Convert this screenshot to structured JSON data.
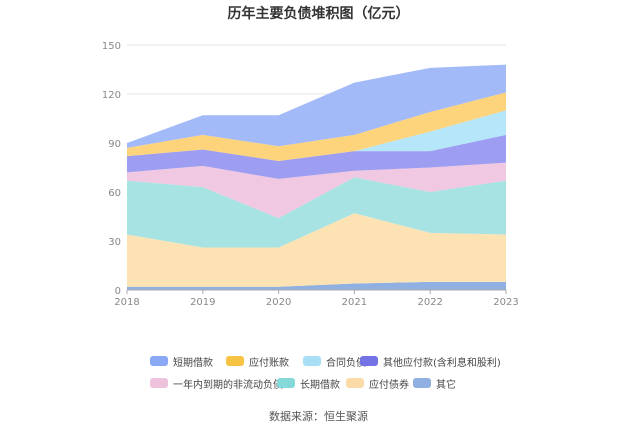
{
  "page": {
    "title": "历年主要负债堆积图（亿元）",
    "source": "数据来源：恒生聚源"
  },
  "chart_data": {
    "type": "area",
    "stacked": true,
    "x": [
      "2018",
      "2019",
      "2020",
      "2021",
      "2022",
      "2023"
    ],
    "ylim": [
      0,
      150
    ],
    "yticks": [
      0,
      30,
      60,
      90,
      120,
      150
    ],
    "grid": true,
    "legend_position": "bottom",
    "series": [
      {
        "name": "其它",
        "color": "#8fb0e0",
        "values": [
          2,
          2,
          2,
          4,
          5,
          5
        ]
      },
      {
        "name": "应付债券",
        "color": "#fde3b4",
        "values": [
          32,
          24,
          24,
          43,
          30,
          29
        ]
      },
      {
        "name": "长期借款",
        "color": "#a8e3e3",
        "values": [
          33,
          37,
          18,
          22,
          25,
          33
        ]
      },
      {
        "name": "一年内到期的非流动负债",
        "color": "#f0c8e1",
        "values": [
          5,
          13,
          24,
          4,
          15,
          11
        ]
      },
      {
        "name": "其他应付款(含利息和股利)",
        "color": "#9d9df2",
        "values": [
          10,
          10,
          11,
          12,
          10,
          17
        ]
      },
      {
        "name": "合同负债",
        "color": "#b5e6fa",
        "values": [
          0,
          0,
          0,
          0,
          12,
          15
        ]
      },
      {
        "name": "应付账款",
        "color": "#fdd37b",
        "values": [
          5,
          9,
          9,
          10,
          12,
          11
        ]
      },
      {
        "name": "短期借款",
        "color": "#a3baf9",
        "values": [
          3,
          12,
          19,
          32,
          27,
          17
        ]
      }
    ]
  },
  "legend": {
    "rows": [
      [
        {
          "label": "短期借款",
          "color": "#8aa8f6"
        },
        {
          "label": "应付账款",
          "color": "#f6c343"
        },
        {
          "label": "合同负债",
          "color": "#a8dff5"
        },
        {
          "label": "其他应付款(含利息和股利)",
          "color": "#7373e6"
        }
      ],
      [
        {
          "label": "一年内到期的非流动负债",
          "color": "#eec2dd"
        },
        {
          "label": "长期借款",
          "color": "#86d9d9"
        },
        {
          "label": "应付债券",
          "color": "#fbdca8"
        },
        {
          "label": "其它",
          "color": "#8fb0e0"
        }
      ]
    ]
  }
}
